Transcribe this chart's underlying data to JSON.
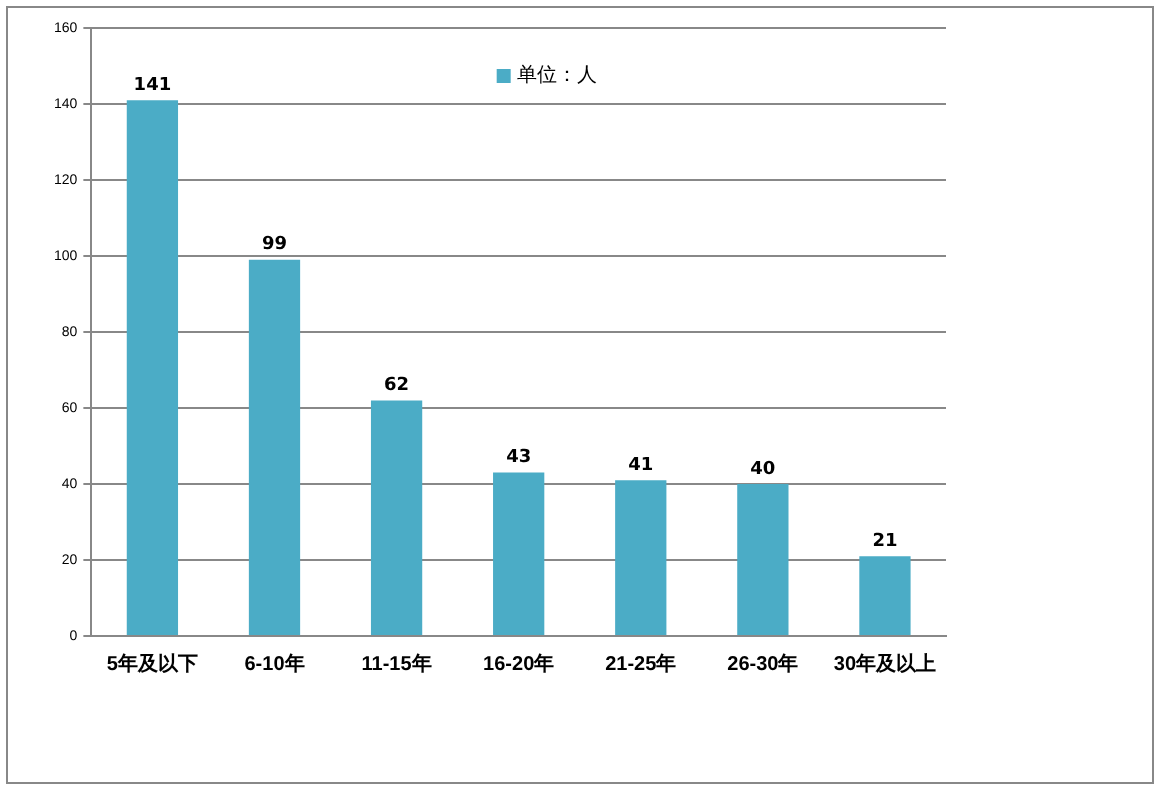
{
  "chart_data": {
    "type": "bar",
    "categories": [
      "5年及以下",
      "6-10年",
      "11-15年",
      "16-20年",
      "21-25年",
      "26-30年",
      "30年及以上"
    ],
    "series": [
      {
        "name": "单位：人",
        "color": "#4bacc6",
        "values": [
          141,
          99,
          62,
          43,
          41,
          40,
          21
        ]
      }
    ],
    "ylim": [
      0,
      160
    ],
    "yticks": [
      0,
      20,
      40,
      60,
      80,
      100,
      120,
      140,
      160
    ],
    "grid": "y",
    "legend": "top",
    "data_labels": true
  }
}
